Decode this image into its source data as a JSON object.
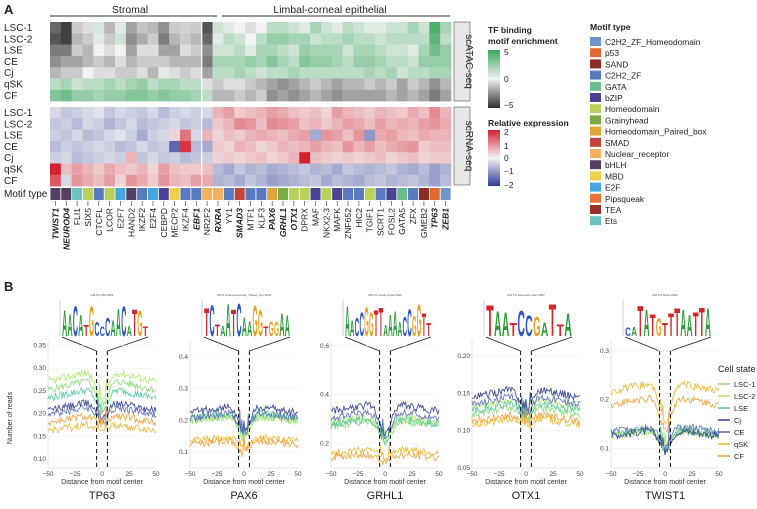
{
  "panels": {
    "a": "A",
    "b": "B"
  },
  "groups": {
    "stromal": "Stromal",
    "epithelial": "Limbal-corneal epithelial"
  },
  "heatmap": {
    "rows": [
      "LSC-1",
      "LSC-2",
      "LSE",
      "CE",
      "Cj",
      "qSK",
      "CF"
    ],
    "row_label_motif": "Motif type",
    "genes": [
      {
        "name": "TWIST1",
        "bold": true,
        "type": "bHLH"
      },
      {
        "name": "NEUROD4",
        "bold": true,
        "type": "bHLH"
      },
      {
        "name": "FLI1",
        "bold": false,
        "type": "Ets"
      },
      {
        "name": "SIX5",
        "bold": false,
        "type": "Homeodomain"
      },
      {
        "name": "CTCFL",
        "bold": false,
        "type": "C2H2_ZF"
      },
      {
        "name": "LCOR",
        "bold": false,
        "type": "Homeodomain"
      },
      {
        "name": "E2F7",
        "bold": false,
        "type": "E2F"
      },
      {
        "name": "HAND2",
        "bold": false,
        "type": "bHLH"
      },
      {
        "name": "IKZF2",
        "bold": false,
        "type": "C2H2_ZF"
      },
      {
        "name": "E2F4",
        "bold": false,
        "type": "E2F"
      },
      {
        "name": "CEBPD",
        "bold": false,
        "type": "bZIP"
      },
      {
        "name": "MECP2",
        "bold": false,
        "type": "MBD"
      },
      {
        "name": "IKZF4",
        "bold": false,
        "type": "C2H2_ZF"
      },
      {
        "name": "EBF1",
        "bold": true,
        "type": "C2H2_ZF"
      },
      {
        "name": "NR2F2",
        "bold": false,
        "type": "Nuclear_receptor"
      },
      {
        "name": "RXRA",
        "bold": true,
        "type": "Nuclear_receptor"
      },
      {
        "name": "YY1",
        "bold": false,
        "type": "C2H2_ZF"
      },
      {
        "name": "SMAD3",
        "bold": true,
        "type": "SMAD"
      },
      {
        "name": "MTF1",
        "bold": false,
        "type": "C2H2_ZF"
      },
      {
        "name": "KLF3",
        "bold": false,
        "type": "C2H2_ZF"
      },
      {
        "name": "PAX6",
        "bold": true,
        "type": "Homeodomain_Paired_box"
      },
      {
        "name": "GRHL1",
        "bold": true,
        "type": "Grainyhead"
      },
      {
        "name": "OTX1",
        "bold": true,
        "type": "Homeodomain"
      },
      {
        "name": "DPRX",
        "bold": false,
        "type": "Homeodomain"
      },
      {
        "name": "MAF",
        "bold": false,
        "type": "bZIP"
      },
      {
        "name": "NKX2-3",
        "bold": false,
        "type": "Homeodomain"
      },
      {
        "name": "MAFK",
        "bold": false,
        "type": "bZIP"
      },
      {
        "name": "ZNF652",
        "bold": false,
        "type": "C2H2_ZF"
      },
      {
        "name": "HIC2",
        "bold": false,
        "type": "C2H2_ZF"
      },
      {
        "name": "TGIF1",
        "bold": false,
        "type": "Homeodomain"
      },
      {
        "name": "SCRT1",
        "bold": false,
        "type": "C2H2_ZF"
      },
      {
        "name": "FOSL2",
        "bold": false,
        "type": "bZIP"
      },
      {
        "name": "GATA5",
        "bold": false,
        "type": "GATA"
      },
      {
        "name": "ZFX",
        "bold": false,
        "type": "C2H2_ZF"
      },
      {
        "name": "GMEB2",
        "bold": false,
        "type": "SAND"
      },
      {
        "name": "TP63",
        "bold": true,
        "type": "p53"
      },
      {
        "name": "ZEB1",
        "bold": true,
        "type": "C2H2_ZF_Homeodomain"
      }
    ],
    "strip_atac": "scATAC-seq",
    "strip_rna": "scRNA-seq",
    "atac_matrix": [
      [
        -3.5,
        -4.5,
        -1.0,
        -0.5,
        0.8,
        -1.5,
        0.5,
        -2.0,
        -1.2,
        -1.5,
        -2.5,
        -1.0,
        -0.8,
        -1.0,
        -4.0,
        1.0,
        0.5,
        0.0,
        -0.5,
        0.0,
        1.5,
        1.5,
        1.0,
        0.5,
        2.0,
        1.0,
        0.5,
        1.5,
        1.0,
        0.5,
        0.5,
        1.0,
        1.0,
        2.0,
        1.0,
        4.5,
        2.0
      ],
      [
        -4.0,
        -4.5,
        -1.5,
        -1.0,
        0.5,
        -1.0,
        1.0,
        -2.5,
        -1.8,
        -1.0,
        -3.0,
        -1.5,
        -1.0,
        -1.5,
        -3.5,
        0.5,
        1.5,
        1.0,
        0.0,
        1.5,
        2.5,
        2.5,
        2.0,
        2.0,
        1.0,
        1.5,
        1.5,
        2.0,
        1.5,
        1.5,
        1.0,
        1.5,
        1.5,
        1.5,
        1.5,
        4.0,
        1.5
      ],
      [
        -3.0,
        -3.0,
        -1.0,
        -1.5,
        0.0,
        -0.5,
        0.0,
        -2.0,
        -0.5,
        -0.5,
        -2.0,
        -2.0,
        -0.5,
        -1.0,
        -2.5,
        1.0,
        1.0,
        1.5,
        0.5,
        2.0,
        2.0,
        1.5,
        1.0,
        2.5,
        2.0,
        2.0,
        2.0,
        1.0,
        2.0,
        2.0,
        1.5,
        1.0,
        1.0,
        0.5,
        2.0,
        3.5,
        2.5
      ],
      [
        -2.5,
        -2.0,
        -2.0,
        -1.5,
        -1.0,
        -1.5,
        -0.5,
        -1.5,
        -1.0,
        -1.0,
        -1.0,
        -1.5,
        -1.5,
        -1.5,
        -3.0,
        2.0,
        2.0,
        2.0,
        2.5,
        2.0,
        3.0,
        2.0,
        1.5,
        3.0,
        2.5,
        2.5,
        2.0,
        1.5,
        2.5,
        2.5,
        2.0,
        1.5,
        1.5,
        1.0,
        2.5,
        2.5,
        2.5
      ],
      [
        -1.5,
        -1.0,
        -1.0,
        0.0,
        -0.5,
        -0.5,
        -1.0,
        -1.0,
        -0.5,
        -1.5,
        0.5,
        -0.5,
        -1.0,
        -0.5,
        -2.0,
        1.5,
        1.5,
        2.0,
        1.5,
        1.0,
        1.5,
        1.5,
        2.0,
        1.5,
        1.5,
        1.5,
        1.5,
        1.5,
        1.5,
        2.0,
        1.5,
        2.0,
        1.0,
        1.5,
        1.5,
        2.0,
        2.0
      ],
      [
        1.5,
        2.0,
        1.0,
        1.5,
        1.5,
        2.0,
        1.5,
        2.0,
        2.5,
        1.5,
        2.0,
        2.0,
        1.5,
        1.5,
        -0.5,
        -1.0,
        -0.5,
        -0.5,
        -1.0,
        -1.5,
        -2.0,
        -2.5,
        -2.0,
        -1.5,
        -1.0,
        -1.5,
        -2.0,
        -1.5,
        -1.5,
        -1.0,
        -1.5,
        -1.0,
        -2.0,
        -1.0,
        -1.5,
        -2.5,
        -1.5
      ],
      [
        3.0,
        3.5,
        2.5,
        2.5,
        2.0,
        2.5,
        2.5,
        3.0,
        3.0,
        2.5,
        3.0,
        2.5,
        2.5,
        2.0,
        1.5,
        -1.5,
        -1.5,
        -1.0,
        -1.5,
        -1.0,
        -2.5,
        -2.0,
        -2.5,
        -2.0,
        -1.5,
        -2.0,
        -2.5,
        -2.0,
        -2.0,
        -2.0,
        -2.0,
        -1.5,
        -2.0,
        -1.5,
        -2.0,
        -3.0,
        -2.0
      ]
    ],
    "rna_matrix": [
      [
        -0.3,
        -0.5,
        -0.4,
        -0.3,
        -0.2,
        -0.5,
        -0.3,
        -0.4,
        -0.5,
        -0.3,
        -0.6,
        -0.4,
        -0.3,
        -0.4,
        -0.3,
        0.6,
        0.8,
        0.4,
        0.5,
        0.6,
        0.8,
        0.7,
        0.5,
        0.4,
        0.5,
        0.3,
        0.8,
        0.6,
        0.5,
        0.4,
        0.6,
        0.5,
        0.4,
        0.7,
        0.5,
        1.0,
        0.6
      ],
      [
        -0.5,
        -0.4,
        -0.6,
        -0.3,
        -0.4,
        -0.7,
        -0.5,
        -0.3,
        -0.6,
        -0.5,
        -0.4,
        -0.3,
        -0.5,
        -0.4,
        -0.6,
        0.4,
        0.6,
        1.0,
        0.9,
        0.5,
        1.0,
        0.9,
        0.8,
        0.5,
        0.6,
        0.4,
        0.6,
        0.8,
        0.7,
        0.5,
        0.8,
        0.6,
        0.7,
        0.6,
        0.8,
        0.9,
        0.7
      ],
      [
        -0.4,
        -0.5,
        -0.3,
        -0.6,
        -0.5,
        -0.3,
        -0.2,
        -0.4,
        -0.8,
        -0.4,
        -0.3,
        0.3,
        1.2,
        -0.3,
        0.6,
        0.3,
        0.5,
        0.4,
        0.6,
        0.7,
        0.6,
        0.5,
        0.7,
        0.8,
        -0.8,
        0.9,
        0.8,
        0.5,
        0.9,
        -1.0,
        0.7,
        0.8,
        0.6,
        0.5,
        0.7,
        0.6,
        0.6
      ],
      [
        -0.6,
        -0.4,
        -0.5,
        -0.4,
        -0.3,
        -0.4,
        -0.6,
        -0.5,
        -0.3,
        -0.5,
        -0.4,
        -1.5,
        1.8,
        -0.6,
        -0.8,
        0.4,
        0.3,
        0.6,
        0.5,
        0.3,
        0.4,
        0.6,
        0.5,
        0.6,
        0.8,
        0.6,
        0.5,
        0.9,
        0.6,
        0.8,
        0.5,
        0.7,
        0.8,
        0.9,
        0.4,
        0.5,
        0.5
      ],
      [
        -0.4,
        -0.3,
        -0.6,
        -0.5,
        -0.4,
        -0.3,
        -0.4,
        0.6,
        -0.5,
        -0.3,
        -0.5,
        -0.4,
        -0.6,
        -0.5,
        -0.4,
        0.3,
        0.4,
        0.3,
        0.4,
        0.5,
        0.3,
        0.4,
        0.6,
        2.2,
        0.5,
        0.4,
        0.3,
        0.4,
        0.3,
        0.4,
        0.5,
        0.3,
        0.4,
        0.5,
        0.3,
        0.4,
        0.4
      ],
      [
        2.0,
        0.5,
        0.8,
        0.6,
        0.4,
        0.7,
        0.5,
        0.4,
        0.6,
        0.3,
        0.8,
        0.5,
        0.4,
        0.4,
        0.5,
        -0.6,
        -0.8,
        -0.5,
        -0.7,
        -0.6,
        -0.8,
        -0.7,
        -0.6,
        -0.5,
        -0.7,
        -0.6,
        -0.8,
        -0.5,
        -0.6,
        -0.7,
        -0.6,
        -0.5,
        -0.7,
        -0.8,
        -0.6,
        -0.9,
        -0.7
      ],
      [
        1.5,
        -0.3,
        0.9,
        0.7,
        0.5,
        0.8,
        0.3,
        0.9,
        0.7,
        0.4,
        0.9,
        0.6,
        0.5,
        0.8,
        0.7,
        -0.7,
        -0.6,
        -0.8,
        -0.5,
        -0.7,
        -0.9,
        -0.8,
        -0.7,
        -0.6,
        -0.5,
        -0.8,
        -0.6,
        -0.7,
        -0.8,
        -0.6,
        -0.5,
        -0.7,
        -0.6,
        -0.5,
        -0.7,
        -0.9,
        -0.6
      ]
    ]
  },
  "legend_binding": {
    "title_line1": "TF binding",
    "title_line2": "motif enrichment",
    "ticks": [
      "5",
      "0",
      "−5"
    ],
    "range": [
      -5,
      5
    ]
  },
  "legend_expr": {
    "title": "Relative expression",
    "ticks": [
      "2",
      "1",
      "0",
      "−1",
      "−2"
    ],
    "range": [
      -2,
      2
    ]
  },
  "motif_legend": {
    "title": "Motif type",
    "items": [
      {
        "label": "C2H2_ZF_Homeodomain",
        "key": "C2H2_ZF_Homeodomain",
        "color": "#6e95c9"
      },
      {
        "label": "p53",
        "key": "p53",
        "color": "#e2692f"
      },
      {
        "label": "SAND",
        "key": "SAND",
        "color": "#8e2b26"
      },
      {
        "label": "C2H2_ZF",
        "key": "C2H2_ZF",
        "color": "#5a7abf"
      },
      {
        "label": "GATA",
        "key": "GATA",
        "color": "#6bbd8d"
      },
      {
        "label": "bZIP",
        "key": "bZIP",
        "color": "#4a4494"
      },
      {
        "label": "Homeodomain",
        "key": "Homeodomain",
        "color": "#b7d15c"
      },
      {
        "label": "Grainyhead",
        "key": "Grainyhead",
        "color": "#7aaa45"
      },
      {
        "label": "Homeodomain_Paired_box",
        "key": "Homeodomain_Paired_box",
        "color": "#e0a53a"
      },
      {
        "label": "SMAD",
        "key": "SMAD",
        "color": "#c0463b"
      },
      {
        "label": "Nuclear_receptor",
        "key": "Nuclear_receptor",
        "color": "#f2b161"
      },
      {
        "label": "bHLH",
        "key": "bHLH",
        "color": "#544064"
      },
      {
        "label": "MBD",
        "key": "MBD",
        "color": "#f2cf4a"
      },
      {
        "label": "E2F",
        "key": "E2F",
        "color": "#44a6dd"
      },
      {
        "label": "Pipsqueak",
        "key": "Pipsqueak",
        "color": "#e8743a"
      },
      {
        "label": "TEA",
        "key": "TEA",
        "color": "#9c2f2d"
      },
      {
        "label": "Ets",
        "key": "Ets",
        "color": "#6cc4c1"
      }
    ]
  },
  "panel_b": {
    "y_title": "Number of reads",
    "x_title": "Distance from motif center",
    "x_ticks": [
      "−50",
      "−25",
      "0",
      "25",
      "50"
    ],
    "plots": [
      {
        "gene": "TP63",
        "motif_name": "GM.5.0.p53.0001",
        "logo": "AACATGCCCAACATGT",
        "yticks": [
          "0.35",
          "0.30",
          "0.25",
          "0.20",
          "0.15",
          "0.10"
        ],
        "ylim": [
          0.08,
          0.36
        ],
        "levels": [
          0.28,
          0.3,
          0.26,
          0.23,
          0.22,
          0.18,
          0.2
        ],
        "dip": 0.14
      },
      {
        "gene": "PAX6",
        "motif_name": "GM.5.0.Homeodomain_Paired_box.0002",
        "logo": "TCTAATCAAGGTGGAA",
        "yticks": [
          "0.4",
          "0.3",
          "0.2",
          "0.1"
        ],
        "ylim": [
          0.05,
          0.45
        ],
        "levels": [
          0.22,
          0.22,
          0.23,
          0.25,
          0.23,
          0.15,
          0.14
        ],
        "dip": 0.06
      },
      {
        "gene": "GRHL1",
        "motif_name": "GM.5.0.Grainyhead.0002",
        "logo": "AACCGGTTAAAACCGGTT",
        "yticks": [
          "0.6",
          "0.4",
          "0.2"
        ],
        "ylim": [
          0.1,
          0.62
        ],
        "levels": [
          0.3,
          0.32,
          0.31,
          0.37,
          0.34,
          0.18,
          0.16
        ],
        "dip": 0.08
      },
      {
        "gene": "OTX1",
        "motif_name": "GM.5.0.Homeodomain.0087",
        "logo": "TAATCCGATTA",
        "yticks": [
          "0.20",
          "0.15",
          "0.10",
          "0.05"
        ],
        "ylim": [
          0.05,
          0.22
        ],
        "levels": [
          0.135,
          0.145,
          0.14,
          0.16,
          0.15,
          0.12,
          0.125
        ],
        "dip": 0.09
      },
      {
        "gene": "TWIST1",
        "motif_name": "GM.5.0.bHLH.0003",
        "logo": "CATATGTTTAATTA",
        "yticks": [
          "0.3",
          "0.2",
          "0.1"
        ],
        "ylim": [
          0.06,
          0.32
        ],
        "levels": [
          0.14,
          0.14,
          0.145,
          0.14,
          0.15,
          0.24,
          0.21
        ],
        "dip": 0.05
      }
    ],
    "legend": {
      "title": "Cell state",
      "items": [
        {
          "label": "LSC-1",
          "color": "#8fd97b"
        },
        {
          "label": "LSC-2",
          "color": "#aee86f"
        },
        {
          "label": "LSE",
          "color": "#55c9a0"
        },
        {
          "label": "Cj",
          "color": "#2d3e8c"
        },
        {
          "label": "CE",
          "color": "#5b6bb5"
        },
        {
          "label": "qSK",
          "color": "#e7ba3b"
        },
        {
          "label": "CF",
          "color": "#f0a23a"
        }
      ]
    }
  },
  "chart_data": [
    {
      "type": "heatmap",
      "title": "scATAC-seq",
      "colorbar": "TF binding motif enrichment",
      "range": [
        -5,
        5
      ]
    },
    {
      "type": "heatmap",
      "title": "scRNA-seq",
      "colorbar": "Relative expression",
      "range": [
        -2,
        2
      ]
    },
    {
      "type": "line",
      "title": "TP63",
      "xlabel": "Distance from motif center",
      "ylabel": "Number of reads",
      "xlim": [
        -50,
        50
      ]
    },
    {
      "type": "line",
      "title": "PAX6",
      "xlabel": "Distance from motif center",
      "xlim": [
        -50,
        50
      ]
    },
    {
      "type": "line",
      "title": "GRHL1",
      "xlabel": "Distance from motif center",
      "xlim": [
        -50,
        50
      ]
    },
    {
      "type": "line",
      "title": "OTX1",
      "xlabel": "Distance from motif center",
      "xlim": [
        -50,
        50
      ]
    },
    {
      "type": "line",
      "title": "TWIST1",
      "xlabel": "Distance from motif center",
      "xlim": [
        -50,
        50
      ]
    }
  ]
}
